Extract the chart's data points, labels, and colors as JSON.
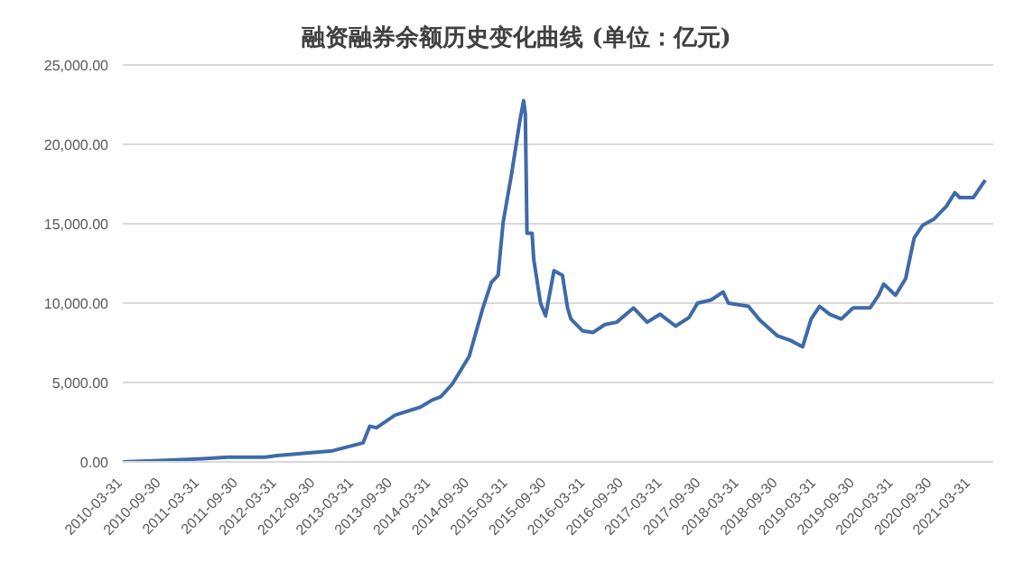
{
  "chart_data": {
    "type": "line",
    "title": "融资融券余额历史变化曲线 (单位：亿元)",
    "x": [
      "2010-03-31",
      "2010-10-18",
      "2011-04-13",
      "2011-08-10",
      "2012-02-03",
      "2012-03-30",
      "2012-09-21",
      "2012-12-19",
      "2013-05-12",
      "2013-06-13",
      "2013-07-15",
      "2013-10-11",
      "2014-02-08",
      "2014-04-05",
      "2014-05-15",
      "2014-07-09",
      "2014-09-27",
      "2014-12-01",
      "2015-01-10",
      "2015-02-11",
      "2015-03-07",
      "2015-04-16",
      "2015-05-26",
      "2015-06-12",
      "2015-06-20",
      "2015-06-28",
      "2015-07-22",
      "2015-07-30",
      "2015-08-31",
      "2015-09-24",
      "2015-11-03",
      "2015-12-13",
      "2016-01-06",
      "2016-01-22",
      "2016-03-18",
      "2016-05-05",
      "2016-07-01",
      "2016-08-26",
      "2016-11-14",
      "2017-01-17",
      "2017-03-20",
      "2017-06-01",
      "2017-08-04",
      "2017-09-13",
      "2017-11-16",
      "2018-01-12",
      "2018-02-06",
      "2018-05-12",
      "2018-07-07",
      "2018-09-25",
      "2018-11-28",
      "2019-01-24",
      "2019-03-05",
      "2019-04-14",
      "2019-06-01",
      "2019-07-26",
      "2019-09-20",
      "2019-12-09",
      "2020-01-19",
      "2020-02-12",
      "2020-04-08",
      "2020-05-26",
      "2020-07-05",
      "2020-08-14",
      "2020-10-08",
      "2020-12-05",
      "2021-01-14",
      "2021-02-06",
      "2021-04-12",
      "2021-06-07"
    ],
    "series": [
      {
        "color": "#3e6aa8",
        "values": [
          0,
          100,
          200,
          300,
          300,
          400,
          600,
          700,
          1200,
          2250,
          2150,
          2950,
          3450,
          3900,
          4100,
          4900,
          6650,
          9700,
          11300,
          11750,
          15100,
          18150,
          21550,
          22750,
          21950,
          14400,
          14400,
          12750,
          10000,
          9200,
          12050,
          11750,
          9700,
          9000,
          8250,
          8150,
          8650,
          8800,
          9700,
          8800,
          9300,
          8550,
          9100,
          10000,
          10200,
          10700,
          10000,
          9800,
          8900,
          7950,
          7650,
          7250,
          9000,
          9800,
          9300,
          9000,
          9700,
          9700,
          10500,
          11200,
          10500,
          11550,
          14100,
          14900,
          15300,
          16100,
          16950,
          16650,
          16650,
          17750
        ]
      }
    ],
    "xlim": [
      "2010-03-31",
      "2021-07-15"
    ],
    "xticks": [
      "2010-03-31",
      "2010-09-30",
      "2011-03-31",
      "2011-09-30",
      "2012-03-31",
      "2012-09-30",
      "2013-03-31",
      "2013-09-30",
      "2014-03-31",
      "2014-09-30",
      "2015-03-31",
      "2015-09-30",
      "2016-03-31",
      "2016-09-30",
      "2017-03-31",
      "2017-09-30",
      "2018-03-31",
      "2018-09-30",
      "2019-03-31",
      "2019-09-30",
      "2020-03-31",
      "2020-09-30",
      "2021-03-31"
    ],
    "ylim": [
      0,
      25000
    ],
    "yticks": [
      {
        "value": 0,
        "label": "0.00"
      },
      {
        "value": 5000,
        "label": "5,000.00"
      },
      {
        "value": 10000,
        "label": "10,000.00"
      },
      {
        "value": 15000,
        "label": "15,000.00"
      },
      {
        "value": 20000,
        "label": "20,000.00"
      },
      {
        "value": 25000,
        "label": "25,000.00"
      }
    ],
    "grid": "y",
    "marker": "none",
    "line_style": "solid"
  }
}
